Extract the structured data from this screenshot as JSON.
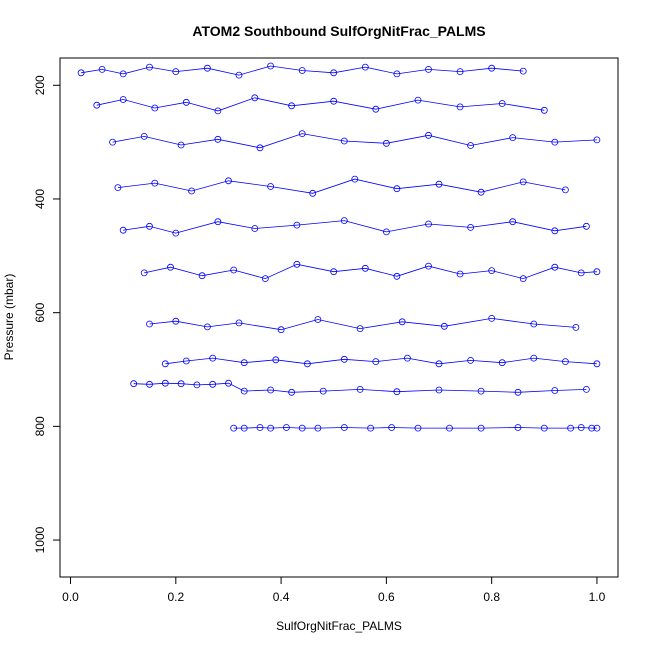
{
  "chart_data": {
    "type": "scatter",
    "title": "ATOM2 Southbound SulfOrgNitFrac_PALMS",
    "xlabel": "SulfOrgNitFrac_PALMS",
    "ylabel": "Pressure (mbar)",
    "xlim": [
      -0.02,
      1.04
    ],
    "ylim": [
      1065,
      152
    ],
    "y_reversed": true,
    "x_ticks": [
      "0.0",
      "0.2",
      "0.4",
      "0.6",
      "0.8",
      "1.0"
    ],
    "y_ticks": [
      "200",
      "400",
      "600",
      "800",
      "1000"
    ],
    "color": "#0000ff",
    "marker": "open-circle",
    "connect_points": true,
    "grid": false,
    "legend": "none",
    "series": [
      {
        "x": [
          0.31,
          0.33,
          0.36,
          0.38,
          0.41,
          0.44,
          0.47,
          0.52,
          0.57,
          0.61,
          0.66,
          0.72,
          0.78,
          0.85,
          0.9,
          0.95,
          0.97,
          0.99,
          1.0
        ],
        "y": [
          803,
          803,
          802,
          803,
          802,
          803,
          803,
          802,
          803,
          802,
          803,
          803,
          803,
          802,
          803,
          803,
          802,
          803,
          803
        ]
      },
      {
        "x": [
          0.12,
          0.15,
          0.18,
          0.21,
          0.24,
          0.27,
          0.3,
          0.33,
          0.38,
          0.42,
          0.48,
          0.55,
          0.62,
          0.7,
          0.78,
          0.85,
          0.92,
          0.98
        ],
        "y": [
          725,
          726,
          724,
          725,
          727,
          726,
          724,
          738,
          736,
          740,
          738,
          735,
          739,
          736,
          738,
          740,
          737,
          735
        ]
      },
      {
        "x": [
          0.18,
          0.22,
          0.27,
          0.33,
          0.39,
          0.45,
          0.52,
          0.58,
          0.64,
          0.7,
          0.76,
          0.82,
          0.88,
          0.94,
          1.0
        ],
        "y": [
          690,
          685,
          680,
          688,
          683,
          690,
          682,
          686,
          680,
          690,
          684,
          688,
          680,
          686,
          690
        ]
      },
      {
        "x": [
          0.15,
          0.2,
          0.26,
          0.32,
          0.4,
          0.47,
          0.55,
          0.63,
          0.71,
          0.8,
          0.88,
          0.96
        ],
        "y": [
          620,
          615,
          625,
          618,
          630,
          612,
          628,
          616,
          624,
          610,
          620,
          626
        ]
      },
      {
        "x": [
          0.14,
          0.19,
          0.25,
          0.31,
          0.37,
          0.43,
          0.5,
          0.56,
          0.62,
          0.68,
          0.74,
          0.8,
          0.86,
          0.92,
          0.97,
          1.0
        ],
        "y": [
          530,
          520,
          535,
          525,
          540,
          515,
          528,
          522,
          536,
          518,
          532,
          526,
          540,
          520,
          530,
          528
        ]
      },
      {
        "x": [
          0.1,
          0.15,
          0.2,
          0.28,
          0.35,
          0.43,
          0.52,
          0.6,
          0.68,
          0.76,
          0.84,
          0.92,
          0.98
        ],
        "y": [
          455,
          448,
          460,
          440,
          452,
          446,
          438,
          458,
          444,
          450,
          440,
          456,
          448
        ]
      },
      {
        "x": [
          0.09,
          0.16,
          0.23,
          0.3,
          0.38,
          0.46,
          0.54,
          0.62,
          0.7,
          0.78,
          0.86,
          0.94
        ],
        "y": [
          380,
          372,
          386,
          368,
          378,
          390,
          365,
          382,
          374,
          388,
          370,
          384
        ]
      },
      {
        "x": [
          0.08,
          0.14,
          0.21,
          0.28,
          0.36,
          0.44,
          0.52,
          0.6,
          0.68,
          0.76,
          0.84,
          0.92,
          1.0
        ],
        "y": [
          300,
          290,
          305,
          295,
          310,
          285,
          298,
          302,
          288,
          306,
          292,
          300,
          296
        ]
      },
      {
        "x": [
          0.05,
          0.1,
          0.16,
          0.22,
          0.28,
          0.35,
          0.42,
          0.5,
          0.58,
          0.66,
          0.74,
          0.82,
          0.9
        ],
        "y": [
          235,
          225,
          240,
          230,
          245,
          222,
          236,
          228,
          242,
          226,
          238,
          232,
          244
        ]
      },
      {
        "x": [
          0.02,
          0.06,
          0.1,
          0.15,
          0.2,
          0.26,
          0.32,
          0.38,
          0.44,
          0.5,
          0.56,
          0.62,
          0.68,
          0.74,
          0.8,
          0.86
        ],
        "y": [
          178,
          172,
          180,
          168,
          176,
          170,
          182,
          166,
          174,
          178,
          168,
          180,
          172,
          176,
          170,
          175
        ]
      }
    ]
  }
}
